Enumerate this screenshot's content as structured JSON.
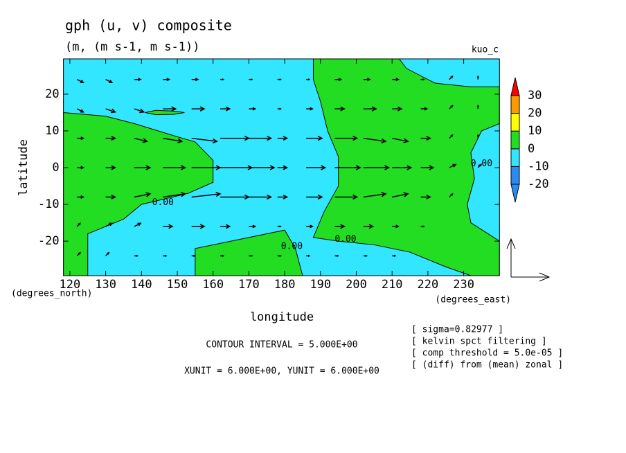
{
  "chart_data": {
    "type": "contour-vector",
    "title": "gph (u, v) composite",
    "subtitle": "(m, (m s-1, m s-1))",
    "label_right": "kuo_c",
    "xlabel": "longitude",
    "ylabel": "latitude",
    "xunit_label": "(degrees_east)",
    "yunit_label": "(degrees_north)",
    "xlim": [
      118.2,
      240
    ],
    "ylim": [
      -29.4,
      29.6
    ],
    "xticks": [
      120,
      130,
      140,
      150,
      160,
      170,
      180,
      190,
      200,
      210,
      220,
      230
    ],
    "yticks": [
      -20,
      -10,
      0,
      10,
      20
    ],
    "annotations": [
      "CONTOUR INTERVAL = 5.000E+00",
      "XUNIT = 6.000E+00, YUNIT = 6.000E+00"
    ],
    "notes": [
      "[ sigma=0.82977 ]",
      "[ kelvin spct filtering ]",
      "[ comp threshold = 5.0e-05 ]",
      "[ (diff) from (mean) zonal ]"
    ],
    "vector_unit": 6,
    "background": {
      "range": [
        -10,
        0
      ],
      "color": "#33e6ff"
    },
    "regions": [
      {
        "range": [
          0,
          10
        ],
        "color": "#22dd22",
        "polygon": [
          [
            118.2,
            15
          ],
          [
            130,
            14
          ],
          [
            138,
            12
          ],
          [
            148,
            9
          ],
          [
            155,
            7
          ],
          [
            160,
            2
          ],
          [
            160,
            -4
          ],
          [
            153,
            -7
          ],
          [
            140,
            -10
          ],
          [
            135,
            -14
          ],
          [
            130,
            -16
          ],
          [
            125,
            -18
          ],
          [
            125,
            -29.4
          ],
          [
            118.2,
            -29.4
          ]
        ]
      },
      {
        "range": [
          0,
          10
        ],
        "color": "#22dd22",
        "polygon": [
          [
            188,
            29.6
          ],
          [
            212,
            29.6
          ],
          [
            214,
            27
          ],
          [
            222,
            23
          ],
          [
            232,
            22
          ],
          [
            240,
            22
          ],
          [
            240,
            12
          ],
          [
            235,
            10
          ],
          [
            232,
            4
          ],
          [
            233,
            -3
          ],
          [
            231,
            -10
          ],
          [
            232,
            -15
          ],
          [
            240,
            -20
          ],
          [
            240,
            -29.4
          ],
          [
            232,
            -29.4
          ],
          [
            225,
            -27
          ],
          [
            215,
            -23
          ],
          [
            205,
            -21
          ],
          [
            195,
            -20
          ],
          [
            188,
            -19
          ],
          [
            191,
            -12
          ],
          [
            195,
            -5
          ],
          [
            195,
            3
          ],
          [
            192,
            10
          ],
          [
            190,
            18
          ],
          [
            188,
            24
          ]
        ]
      },
      {
        "range": [
          0,
          10
        ],
        "color": "#22dd22",
        "polygon": [
          [
            155,
            -29.4
          ],
          [
            155,
            -22
          ],
          [
            165,
            -20
          ],
          [
            175,
            -18
          ],
          [
            180,
            -17
          ],
          [
            183,
            -22
          ],
          [
            185,
            -29.4
          ]
        ]
      },
      {
        "range": [
          0,
          10
        ],
        "color": "#22dd22",
        "polygon": [
          [
            141,
            15
          ],
          [
            144,
            15.6
          ],
          [
            149,
            15.4
          ],
          [
            152,
            15
          ],
          [
            149,
            14.5
          ],
          [
            144,
            14.4
          ]
        ]
      }
    ],
    "contour_labels": [
      {
        "text": "0.00",
        "lon": 146,
        "lat": -9.5
      },
      {
        "text": "0.00",
        "lon": 182,
        "lat": -21.5
      },
      {
        "text": "0.00",
        "lon": 197,
        "lat": -19.5
      },
      {
        "text": "0.00",
        "lon": 235,
        "lat": 1
      }
    ],
    "vector_lons": [
      122,
      130,
      138,
      146,
      154,
      162,
      170,
      178,
      186,
      194,
      202,
      210,
      218,
      226,
      234
    ],
    "vector_lats": [
      24,
      16,
      8,
      0,
      -8,
      -16,
      -24
    ],
    "u": [
      [
        1,
        1,
        1,
        1,
        1,
        0.5,
        0.5,
        0.5,
        0.5,
        1,
        1,
        1,
        0.5,
        0.5,
        0
      ],
      [
        1,
        1.5,
        1.5,
        2,
        2,
        1.5,
        1,
        0.5,
        1,
        1.5,
        2,
        1.5,
        1,
        0.5,
        0
      ],
      [
        1,
        1.5,
        2,
        3,
        4,
        4.5,
        3.5,
        1.5,
        2.5,
        3.5,
        3.5,
        2.5,
        1.5,
        0.5,
        0
      ],
      [
        1,
        1.5,
        2.5,
        3.5,
        4.5,
        5,
        4,
        1.5,
        3,
        4,
        4,
        3,
        2,
        1,
        0.5
      ],
      [
        1,
        1.5,
        2.5,
        3.5,
        4.5,
        4.5,
        3.5,
        1.5,
        2.5,
        3.5,
        3.5,
        2.5,
        1.5,
        0.5,
        0
      ],
      [
        0.5,
        1,
        1,
        1.5,
        2,
        1.5,
        1,
        0.5,
        1,
        1.5,
        1.5,
        1,
        0.5,
        0,
        0
      ],
      [
        0.5,
        0.5,
        0.5,
        0.5,
        0.5,
        0.5,
        0.5,
        0.5,
        0.5,
        0.5,
        0.5,
        0.5,
        0,
        0,
        0
      ]
    ],
    "v": [
      [
        -0.5,
        -0.5,
        0,
        0,
        0,
        0,
        0,
        0,
        0,
        0,
        0,
        0,
        0,
        0.5,
        0.5
      ],
      [
        -0.5,
        -0.5,
        -0.5,
        0,
        0,
        0,
        0,
        0,
        0,
        0,
        0,
        0,
        0,
        0.5,
        0.5
      ],
      [
        0,
        0,
        -0.5,
        -0.5,
        -0.5,
        0,
        0,
        0,
        0,
        0,
        -0.5,
        -0.5,
        0,
        0.5,
        0.5
      ],
      [
        0,
        0,
        0,
        0,
        0,
        0,
        0,
        0,
        0,
        0,
        0,
        0,
        0,
        0.5,
        0.5
      ],
      [
        0,
        0,
        0.5,
        0.5,
        0.5,
        0,
        0,
        0,
        0,
        0,
        0.5,
        0.5,
        0,
        0.5,
        0
      ],
      [
        0.5,
        0.5,
        0.5,
        0,
        0,
        0,
        0,
        0,
        0,
        0,
        0,
        0,
        0,
        0,
        0
      ],
      [
        0.5,
        0.5,
        0,
        0,
        0,
        0,
        0,
        0,
        0,
        0,
        0,
        0,
        0,
        0,
        0
      ]
    ],
    "colorbar": {
      "ticks": [
        -20,
        -10,
        0,
        10,
        20,
        30
      ],
      "colors": [
        "#2a8cf0",
        "#2a8cf0",
        "#33e6ff",
        "#22dd22",
        "#ffff00",
        "#ff9900",
        "#ff0000"
      ]
    }
  }
}
